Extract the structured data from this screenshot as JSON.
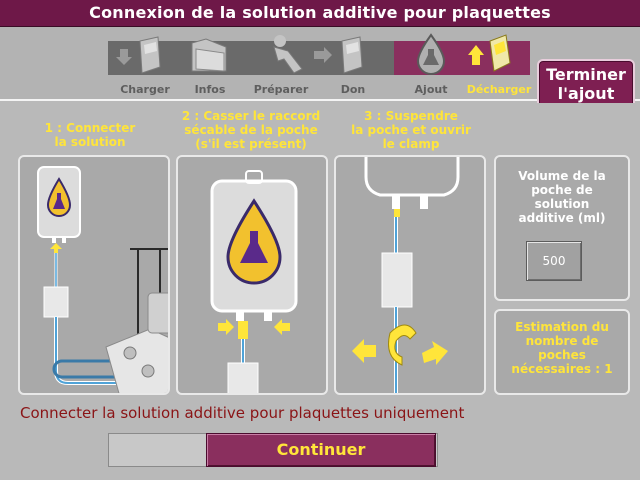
{
  "header": {
    "title": "Connexion de la solution additive pour plaquettes"
  },
  "steps": [
    {
      "label": "Charger",
      "icon": "cassette-icon",
      "state": "done"
    },
    {
      "label": "Infos",
      "icon": "folder-icon",
      "state": "done"
    },
    {
      "label": "Préparer",
      "icon": "donor-icon",
      "state": "done"
    },
    {
      "label": "Don",
      "icon": "cassette-icon",
      "state": "done"
    },
    {
      "label": "Ajout",
      "icon": "flask-drop-icon",
      "state": "current"
    },
    {
      "label": "Décharger",
      "icon": "unload-cassette-icon",
      "state": "active"
    }
  ],
  "finish_button": {
    "line1": "Terminer",
    "line2": "l'ajout"
  },
  "instructions": [
    {
      "line1": "1 : Connecter",
      "line2": "la solution",
      "line3": ""
    },
    {
      "line1": "2  : Casser le raccord",
      "line2": "sécable de la poche",
      "line3": "(s'il est présent)"
    },
    {
      "line1": "3 : Suspendre",
      "line2": "la poche et ouvrir",
      "line3": "le clamp"
    }
  ],
  "volume": {
    "line1": "Volume de la",
    "line2": "poche de",
    "line3": "solution",
    "line4": "additive (ml)",
    "value": "500"
  },
  "estimate": {
    "line1": "Estimation du",
    "line2": "nombre de",
    "line3": "poches",
    "line4": "nécessaires : 1"
  },
  "message": "Connecter la solution additive pour plaquettes uniquement",
  "continue_button": "Continuer",
  "colors": {
    "header": "#6e1848",
    "accent": "#8a2f5e",
    "highlight": "#ffe53a",
    "message": "#8a1416"
  }
}
